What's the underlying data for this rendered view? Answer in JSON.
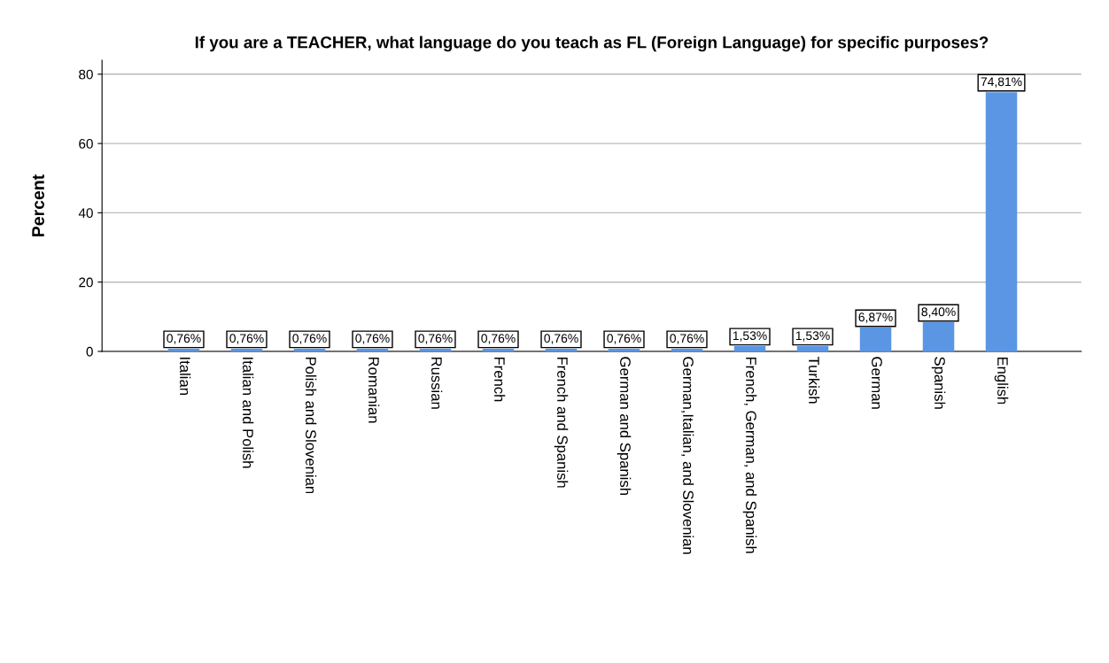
{
  "chart_data": {
    "type": "bar",
    "title": "If you are a TEACHER, what language do you teach as FL (Foreign Language) for specific purposes?",
    "ylabel": "Percent",
    "categories": [
      "Italian",
      "Italian and Polish",
      "Polish and Slovenian",
      "Romanian",
      "Russian",
      "French",
      "French and Spanish",
      "German and Spanish",
      "German,Italian, and Slovenian",
      "French, German, and Spanish",
      "Turkish",
      "German",
      "Spanish",
      "English"
    ],
    "values": [
      0.76,
      0.76,
      0.76,
      0.76,
      0.76,
      0.76,
      0.76,
      0.76,
      0.76,
      1.53,
      1.53,
      6.87,
      8.4,
      74.81
    ],
    "value_labels": [
      "0,76%",
      "0,76%",
      "0,76%",
      "0,76%",
      "0,76%",
      "0,76%",
      "0,76%",
      "0,76%",
      "0,76%",
      "1,53%",
      "1,53%",
      "6,87%",
      "8,40%",
      "74,81%"
    ],
    "color": "#5a96e3",
    "ylim": [
      0,
      84
    ],
    "yticks": [
      0,
      20,
      40,
      60,
      80
    ],
    "grid": "y"
  }
}
